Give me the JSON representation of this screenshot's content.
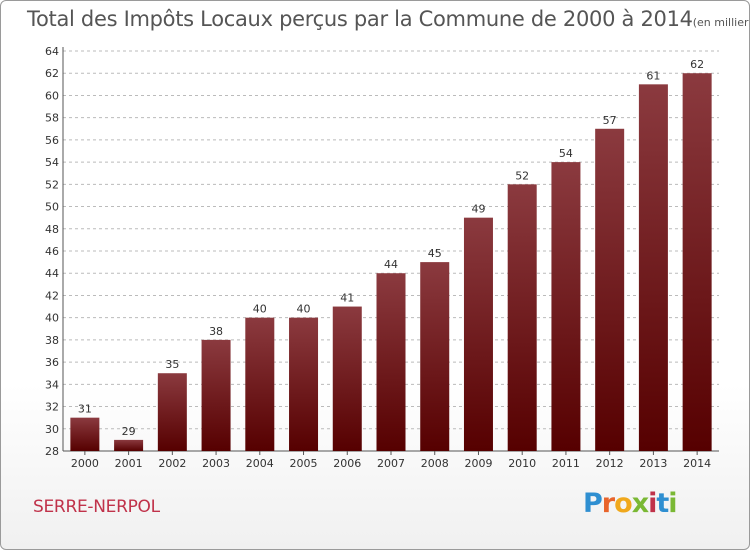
{
  "header": {
    "title": "Total des Impôts Locaux perçus par la Commune de 2000 à 2014",
    "unit": "(en milliers d'€)"
  },
  "footer": {
    "commune": "SERRE-NERPOL",
    "logo_letters": [
      "P",
      "r",
      "o",
      "x",
      "i",
      "t",
      "i"
    ]
  },
  "colors": {
    "bar_top": "#8b3a3f",
    "bar_bottom": "#560000",
    "grid": "#bbbbbb"
  },
  "chart_data": {
    "type": "bar",
    "title": "Total des Impôts Locaux perçus par la Commune de 2000 à 2014",
    "xlabel": "",
    "ylabel": "",
    "categories": [
      "2000",
      "2001",
      "2002",
      "2003",
      "2004",
      "2005",
      "2006",
      "2007",
      "2008",
      "2009",
      "2010",
      "2011",
      "2012",
      "2013",
      "2014"
    ],
    "values": [
      31,
      29,
      35,
      38,
      40,
      40,
      41,
      44,
      45,
      49,
      52,
      54,
      57,
      61,
      62
    ],
    "ylim": [
      28,
      64
    ],
    "yticks": [
      28,
      30,
      32,
      34,
      36,
      38,
      40,
      42,
      44,
      46,
      48,
      50,
      52,
      54,
      56,
      58,
      60,
      62,
      64
    ],
    "grid": true
  }
}
